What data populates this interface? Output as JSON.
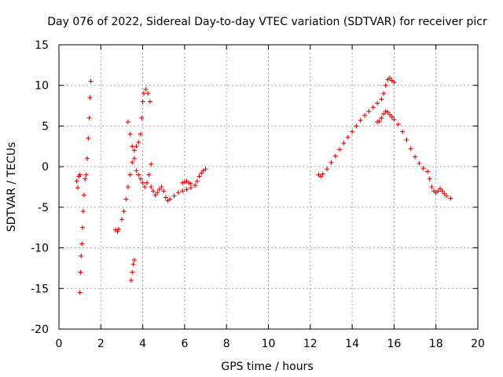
{
  "chart_data": {
    "type": "scatter",
    "title": "Day 076 of 2022, Sidereal Day-to-day VTEC variation (SDTVAR) for receiver picr",
    "xlabel": "GPS time / hours",
    "ylabel": "SDTVAR / TECUs",
    "xlim": [
      0,
      20
    ],
    "ylim": [
      -20,
      15
    ],
    "x_ticks": [
      "0",
      "2",
      "4",
      "6",
      "8",
      "10",
      "12",
      "14",
      "16",
      "18",
      "20"
    ],
    "y_ticks": [
      "-20",
      "-15",
      "-10",
      "-5",
      "0",
      "5",
      "10",
      "15"
    ],
    "grid": true,
    "marker": "+",
    "color": "#ee0000",
    "series": [
      {
        "name": "SDTVAR",
        "segments": [
          [
            [
              0.85,
              -1.8
            ],
            [
              0.9,
              -2.6
            ],
            [
              0.95,
              -1.2
            ],
            [
              1.0,
              -1.0
            ],
            [
              1.0,
              -15.5
            ],
            [
              1.03,
              -13.0
            ],
            [
              1.06,
              -11.0
            ],
            [
              1.1,
              -9.5
            ],
            [
              1.13,
              -7.5
            ],
            [
              1.16,
              -5.5
            ],
            [
              1.2,
              -3.5
            ],
            [
              1.25,
              -1.5
            ],
            [
              1.3,
              -1.0
            ],
            [
              1.35,
              1.0
            ],
            [
              1.4,
              3.5
            ],
            [
              1.45,
              6.0
            ],
            [
              1.48,
              8.5
            ],
            [
              1.52,
              10.5
            ]
          ],
          [
            [
              2.7,
              -7.8
            ],
            [
              2.8,
              -8.0
            ],
            [
              2.85,
              -7.7
            ]
          ],
          [
            [
              3.0,
              -6.5
            ],
            [
              3.1,
              -5.5
            ],
            [
              3.2,
              -4.0
            ],
            [
              3.3,
              -2.5
            ],
            [
              3.4,
              -1.0
            ],
            [
              3.5,
              0.5
            ],
            [
              3.6,
              2.0
            ],
            [
              3.7,
              2.5
            ],
            [
              3.8,
              3.0
            ],
            [
              3.9,
              4.0
            ],
            [
              3.95,
              6.0
            ],
            [
              4.0,
              8.0
            ],
            [
              4.05,
              9.0
            ],
            [
              4.15,
              9.5
            ],
            [
              4.25,
              9.0
            ],
            [
              4.35,
              8.0
            ]
          ],
          [
            [
              3.45,
              -14.0
            ],
            [
              3.5,
              -13.0
            ],
            [
              3.55,
              -12.0
            ],
            [
              3.6,
              -11.5
            ]
          ],
          [
            [
              3.3,
              5.5
            ],
            [
              3.4,
              4.0
            ],
            [
              3.5,
              2.5
            ],
            [
              3.6,
              1.0
            ],
            [
              3.7,
              -0.5
            ],
            [
              3.8,
              -1.0
            ],
            [
              3.9,
              -1.5
            ],
            [
              4.0,
              -2.0
            ],
            [
              4.1,
              -2.5
            ],
            [
              4.2,
              -2.0
            ],
            [
              4.3,
              -1.0
            ],
            [
              4.4,
              0.3
            ]
          ],
          [
            [
              4.4,
              -2.5
            ],
            [
              4.5,
              -3.0
            ],
            [
              4.6,
              -3.5
            ],
            [
              4.7,
              -3.2
            ],
            [
              4.8,
              -2.8
            ],
            [
              4.9,
              -2.5
            ],
            [
              5.0,
              -3.0
            ],
            [
              5.1,
              -3.8
            ],
            [
              5.2,
              -4.2
            ],
            [
              5.3,
              -4.0
            ],
            [
              5.5,
              -3.6
            ],
            [
              5.7,
              -3.2
            ],
            [
              5.9,
              -3.0
            ],
            [
              6.1,
              -2.8
            ],
            [
              6.3,
              -2.6
            ],
            [
              6.5,
              -2.3
            ],
            [
              6.6,
              -1.8
            ],
            [
              6.7,
              -1.2
            ],
            [
              6.8,
              -0.8
            ],
            [
              6.9,
              -0.5
            ],
            [
              7.0,
              -0.3
            ]
          ],
          [
            [
              5.9,
              -2.0
            ],
            [
              6.0,
              -1.9
            ],
            [
              6.1,
              -1.8
            ],
            [
              6.2,
              -2.0
            ],
            [
              6.3,
              -2.1
            ]
          ],
          [
            [
              12.4,
              -1.0
            ],
            [
              12.5,
              -1.2
            ],
            [
              12.6,
              -0.9
            ],
            [
              12.8,
              -0.3
            ],
            [
              13.0,
              0.5
            ],
            [
              13.2,
              1.3
            ],
            [
              13.4,
              2.1
            ],
            [
              13.6,
              2.9
            ],
            [
              13.8,
              3.6
            ],
            [
              14.0,
              4.3
            ],
            [
              14.2,
              5.0
            ],
            [
              14.4,
              5.7
            ],
            [
              14.6,
              6.3
            ],
            [
              14.8,
              6.8
            ],
            [
              15.0,
              7.3
            ],
            [
              15.2,
              7.8
            ],
            [
              15.4,
              8.3
            ],
            [
              15.5,
              9.0
            ],
            [
              15.6,
              10.0
            ],
            [
              15.7,
              10.7
            ],
            [
              15.8,
              10.9
            ],
            [
              15.9,
              10.6
            ],
            [
              16.0,
              10.4
            ]
          ],
          [
            [
              15.2,
              5.5
            ],
            [
              15.3,
              5.6
            ],
            [
              15.4,
              6.0
            ],
            [
              15.5,
              6.5
            ],
            [
              15.6,
              6.8
            ],
            [
              15.7,
              6.7
            ],
            [
              15.8,
              6.4
            ],
            [
              15.9,
              6.1
            ],
            [
              16.0,
              5.8
            ],
            [
              16.2,
              5.2
            ],
            [
              16.4,
              4.3
            ],
            [
              16.6,
              3.3
            ],
            [
              16.8,
              2.2
            ],
            [
              17.0,
              1.2
            ],
            [
              17.2,
              0.4
            ],
            [
              17.4,
              -0.2
            ],
            [
              17.6,
              -0.6
            ],
            [
              17.7,
              -1.5
            ],
            [
              17.8,
              -2.5
            ],
            [
              17.9,
              -3.0
            ],
            [
              18.0,
              -3.2
            ],
            [
              18.1,
              -3.0
            ],
            [
              18.2,
              -2.7
            ],
            [
              18.3,
              -3.0
            ],
            [
              18.4,
              -3.3
            ],
            [
              18.5,
              -3.6
            ],
            [
              18.7,
              -3.9
            ]
          ]
        ]
      }
    ]
  }
}
